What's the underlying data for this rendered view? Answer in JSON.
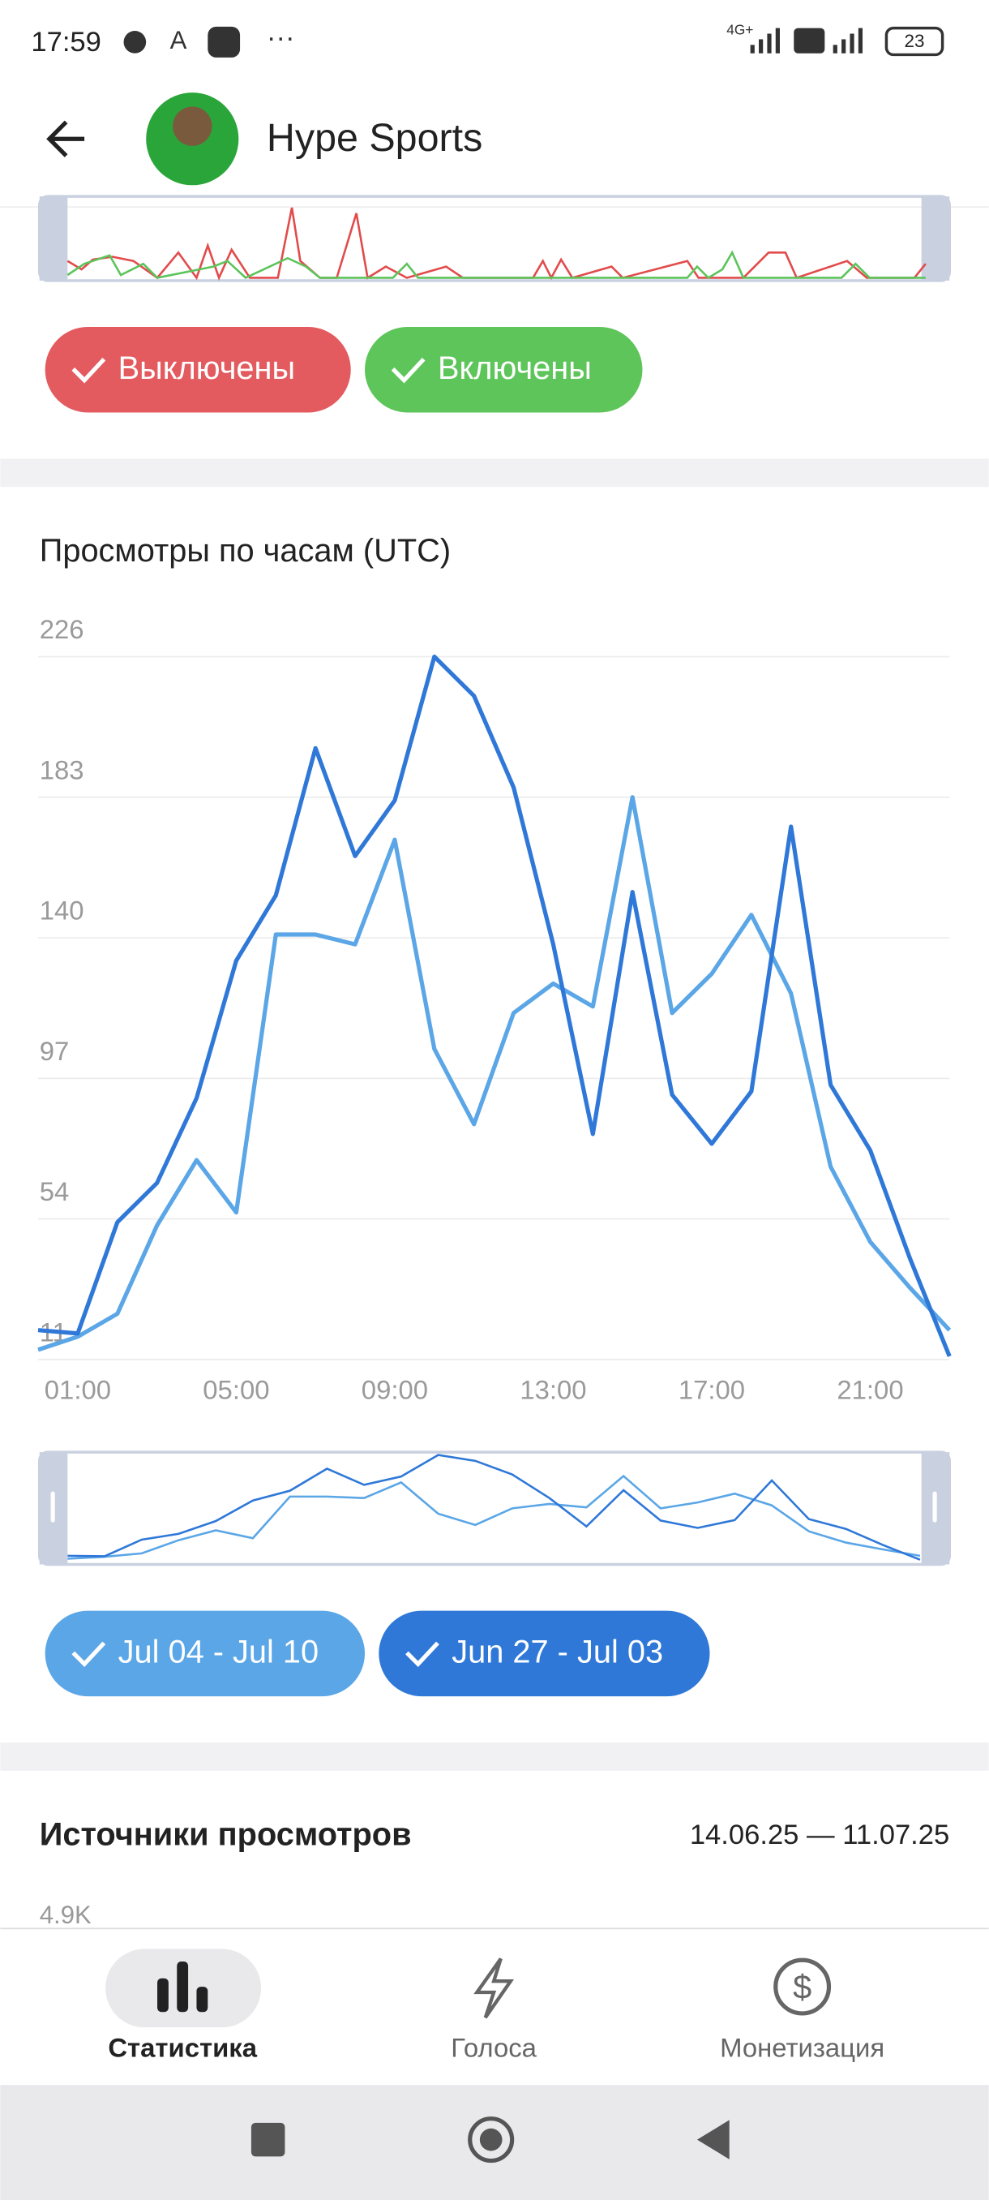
{
  "status_bar": {
    "time": "17:59",
    "network": "4G+",
    "battery": "23"
  },
  "header": {
    "title": "Hype Sports"
  },
  "filter_buttons": [
    "Выключены",
    "Включены"
  ],
  "chart_data": {
    "type": "line",
    "title": "Просмотры по часам (UTC)",
    "categories": [
      null,
      "01:00",
      null,
      null,
      null,
      "05:00",
      null,
      null,
      null,
      "09:00",
      null,
      null,
      null,
      "13:00",
      null,
      null,
      null,
      "17:00",
      null,
      null,
      null,
      "21:00",
      null,
      null
    ],
    "series": [
      {
        "name": "Jul 04 - Jul 10",
        "color": "#5ba6e6",
        "values": [
          14,
          18,
          25,
          52,
          72,
          56,
          141,
          141,
          138,
          170,
          106,
          83,
          117,
          126,
          119,
          183,
          117,
          129,
          147,
          123,
          70,
          47,
          33,
          20
        ]
      },
      {
        "name": "Jun 27 - Jul 03",
        "color": "#2f78d8",
        "values": [
          20,
          19,
          53,
          65,
          91,
          133,
          153,
          198,
          165,
          182,
          226,
          214,
          186,
          138,
          80,
          154,
          92,
          77,
          93,
          174,
          95,
          75,
          42,
          12
        ]
      }
    ],
    "ylim": [
      11,
      226
    ],
    "yticks": [
      11,
      54,
      97,
      140,
      183,
      226
    ],
    "grid": true
  },
  "sources": {
    "title": "Источники просмотров",
    "date_range": "14.06.25 — 11.07.25",
    "first_tick": "4.9K"
  },
  "bottom_nav": [
    "Статистика",
    "Голоса",
    "Монетизация"
  ]
}
